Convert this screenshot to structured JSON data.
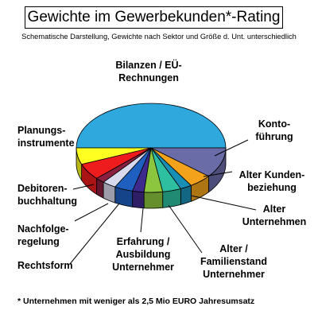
{
  "title": "Gewichte im Gewerbekunden*-Rating",
  "subtitle": "Schematische Darstellung, Gewichte nach Sektor und Größe d. Unt. unterschiedlich",
  "footnote": "* Unternehmen mit weniger als 2,5 Mio EURO Jahresumsatz",
  "chart_data": {
    "type": "pie",
    "three_d": true,
    "title": "Gewichte im Gewerbekunden*-Rating",
    "slices": [
      {
        "label": "Bilanzen / EÜ-Rechnungen",
        "value": 50,
        "color": "#2FA8DE"
      },
      {
        "label": "Kontoführung",
        "value": 11,
        "color": "#6A6CA8"
      },
      {
        "label": "Alter Kundenbeziehung",
        "value": 5,
        "color": "#F2A31B"
      },
      {
        "label": "Alter Unternehmen",
        "value": 2.5,
        "color": "#1A8FB5"
      },
      {
        "label": "Alter / Familienstand Unternehmer",
        "value": 4,
        "color": "#2DBFA0"
      },
      {
        "label": "Erfahrung / Ausbildung Unternehmer",
        "value": 4,
        "color": "#8CC63E"
      },
      {
        "label": "",
        "value": 2.5,
        "color": "#3E2A8C"
      },
      {
        "label": "",
        "value": 4,
        "color": "#1E5FC0"
      },
      {
        "label": "Rechtsform",
        "value": 3,
        "color": "#D9D9EE"
      },
      {
        "label": "Nachfolgeregelung",
        "value": 2,
        "color": "#8A1F3E"
      },
      {
        "label": "Debitorenbuchhaltung",
        "value": 6,
        "color": "#EE1C1C"
      },
      {
        "label": "Planungsinstrumente",
        "value": 6,
        "color": "#FFFF22"
      }
    ]
  },
  "labels": {
    "bilanzen_1": "Bilanzen / EÜ-",
    "bilanzen_2": "Rechnungen",
    "konto_1": "Konto-",
    "konto_2": "führung",
    "kunden_1": "Alter Kunden-",
    "kunden_2": "beziehung",
    "alter_unt_1": "Alter",
    "alter_unt_2": "Unternehmen",
    "familie_1": "Alter /",
    "familie_2": "Familienstand",
    "familie_3": "Unternehmer",
    "erfahrung_1": "Erfahrung /",
    "erfahrung_2": "Ausbildung",
    "erfahrung_3": "Unternehmer",
    "rechtsform": "Rechtsform",
    "nachfolge_1": "Nachfolge-",
    "nachfolge_2": "regelung",
    "debitoren_1": "Debitoren-",
    "debitoren_2": "buchhaltung",
    "planung_1": "Planungs-",
    "planung_2": "instrumente"
  }
}
